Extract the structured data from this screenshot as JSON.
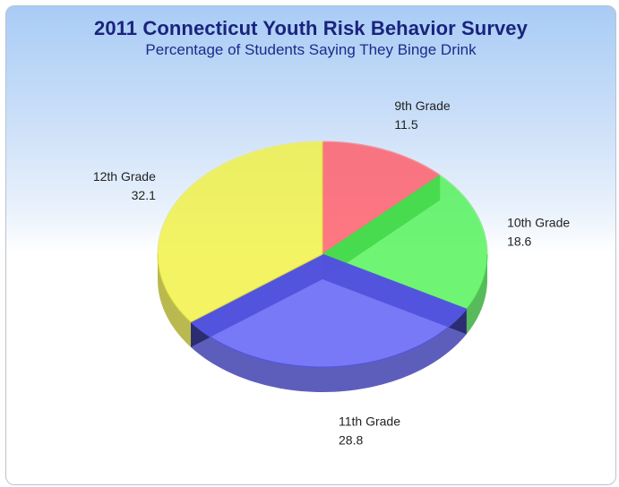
{
  "chart_data": {
    "type": "pie",
    "title": "2011 Connecticut Youth Risk Behavior Survey",
    "subtitle": "Percentage of Students Saying They Binge Drink",
    "three_d": true,
    "categories": [
      "9th Grade",
      "10th Grade",
      "11th Grade",
      "12th Grade"
    ],
    "values": [
      11.5,
      18.6,
      28.8,
      32.1
    ],
    "value_labels": [
      "11.5",
      "18.6",
      "28.8",
      "32.1"
    ],
    "colors": [
      "#ff5a66",
      "#4ff256",
      "#5a5cf5",
      "#f0f042"
    ],
    "legend": "none"
  }
}
